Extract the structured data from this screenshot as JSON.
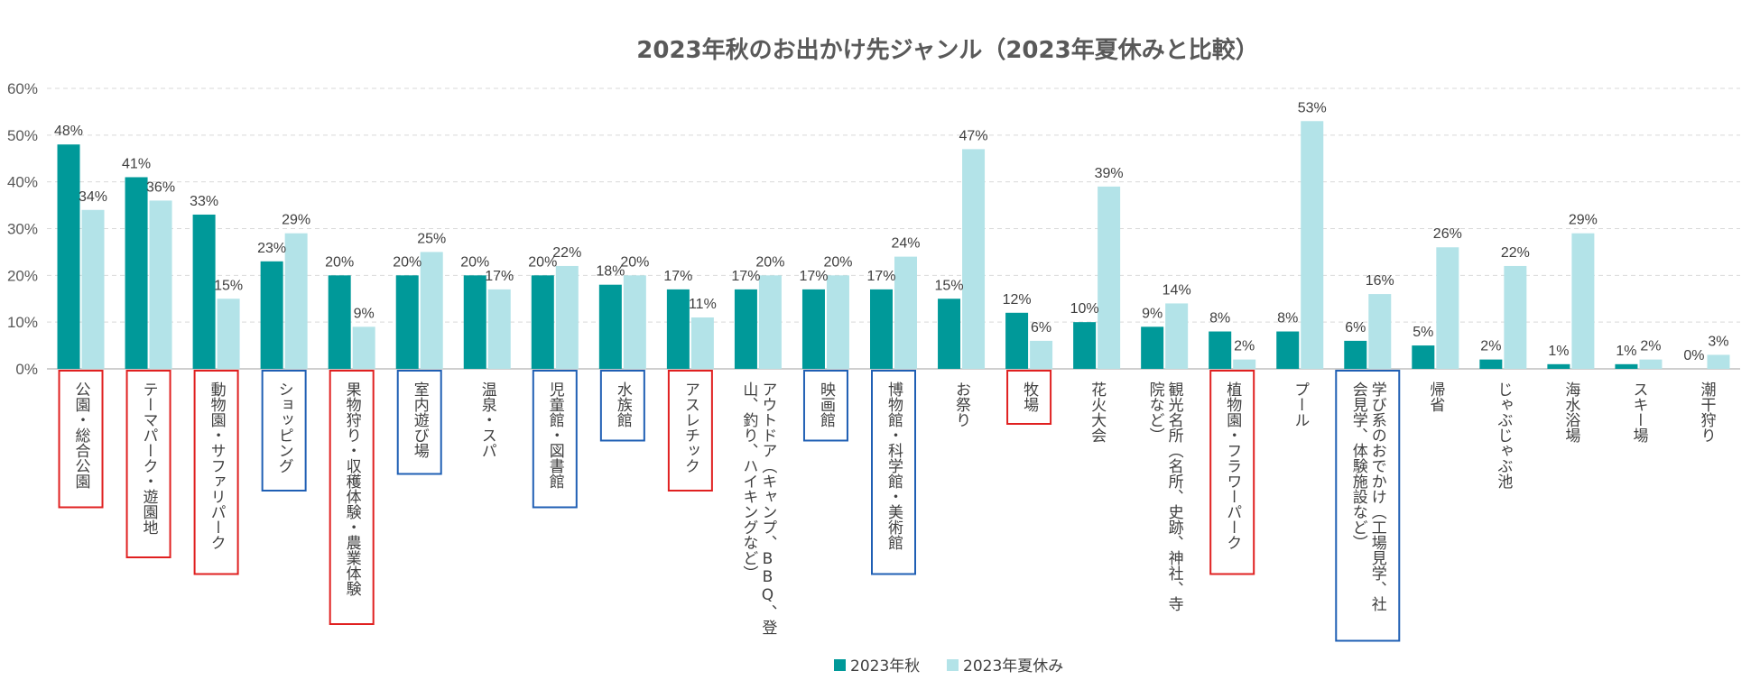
{
  "chart_data": {
    "type": "bar",
    "title": "2023年秋のお出かけ先ジャンル（2023年夏休みと比較）",
    "xlabel": "",
    "ylabel": "",
    "ylim": [
      0,
      60
    ],
    "yticks": [
      "0%",
      "10%",
      "20%",
      "30%",
      "40%",
      "50%",
      "60%"
    ],
    "grid": true,
    "legend_position": "bottom",
    "categories": [
      "公園・総合公園",
      "テーマパーク・遊園地",
      "動物園・サファリパーク",
      "ショッピング",
      "果物狩り・収穫体験・農業体験",
      "室内遊び場",
      "温泉・スパ",
      "児童館・図書館",
      "水族館",
      "アスレチック",
      "アウトドア（キャンプ、BBQ、登山、釣り、ハイキングなど）",
      "映画館",
      "博物館・科学館・美術館",
      "お祭り",
      "牧場",
      "花火大会",
      "観光名所（名所、史跡、神社、寺院など）",
      "植物園・フラワーパーク",
      "プール",
      "学び系のおでかけ（工場見学、社会見学、体験施設など）",
      "帰省",
      "じゃぶじゃぶ池",
      "海水浴場",
      "スキー場",
      "潮干狩り"
    ],
    "category_lines": [
      [
        "公園・総合公園"
      ],
      [
        "テーマパーク・遊園地"
      ],
      [
        "動物園・サファリパーク"
      ],
      [
        "ショッピング"
      ],
      [
        "果物狩り・収穫体験・農業体験"
      ],
      [
        "室内遊び場"
      ],
      [
        "温泉・スパ"
      ],
      [
        "児童館・図書館"
      ],
      [
        "水族館"
      ],
      [
        "アスレチック"
      ],
      [
        "アウトドア（キャンプ、BBQ、登",
        "山、釣り、ハイキングなど）"
      ],
      [
        "映画館"
      ],
      [
        "博物館・科学館・美術館"
      ],
      [
        "お祭り"
      ],
      [
        "牧場"
      ],
      [
        "花火大会"
      ],
      [
        "観光名所（名所、史跡、神社、寺",
        "院など）"
      ],
      [
        "植物園・フラワーパーク"
      ],
      [
        "プール"
      ],
      [
        "学び系のおでかけ（工場見学、社",
        "会見学、体験施設など）"
      ],
      [
        "帰省"
      ],
      [
        "じゃぶじゃぶ池"
      ],
      [
        "海水浴場"
      ],
      [
        "スキー場"
      ],
      [
        "潮干狩り"
      ]
    ],
    "series": [
      {
        "name": "2023年秋",
        "color": "#009999",
        "values": [
          48,
          41,
          33,
          23,
          20,
          20,
          20,
          20,
          18,
          17,
          17,
          17,
          17,
          15,
          12,
          10,
          9,
          8,
          8,
          6,
          5,
          2,
          1,
          1,
          0
        ],
        "labels": [
          "48%",
          "41%",
          "33%",
          "23%",
          "20%",
          "20%",
          "20%",
          "20%",
          "18%",
          "17%",
          "17%",
          "17%",
          "17%",
          "15%",
          "12%",
          "10%",
          "9%",
          "8%",
          "8%",
          "6%",
          "5%",
          "2%",
          "1%",
          "1%",
          "0%"
        ]
      },
      {
        "name": "2023年夏休み",
        "color": "#b3e3e8",
        "values": [
          34,
          36,
          15,
          29,
          9,
          25,
          17,
          22,
          20,
          11,
          20,
          20,
          24,
          47,
          6,
          39,
          14,
          2,
          53,
          16,
          26,
          22,
          29,
          2,
          3
        ],
        "labels": [
          "34%",
          "36%",
          "15%",
          "29%",
          "9%",
          "25%",
          "17%",
          "22%",
          "20%",
          "11%",
          "20%",
          "20%",
          "24%",
          "47%",
          "6%",
          "39%",
          "14%",
          "2%",
          "53%",
          "16%",
          "26%",
          "22%",
          "29%",
          "2%",
          "3%"
        ]
      }
    ],
    "highlight_boxes": [
      {
        "category": "公園・総合公園",
        "color": "#e02020"
      },
      {
        "category": "テーマパーク・遊園地",
        "color": "#e02020"
      },
      {
        "category": "動物園・サファリパーク",
        "color": "#e02020"
      },
      {
        "category": "ショッピング",
        "color": "#1f5fb4"
      },
      {
        "category": "果物狩り・収穫体験・農業体験",
        "color": "#e02020"
      },
      {
        "category": "室内遊び場",
        "color": "#1f5fb4"
      },
      {
        "category": "児童館・図書館",
        "color": "#1f5fb4"
      },
      {
        "category": "水族館",
        "color": "#1f5fb4"
      },
      {
        "category": "アスレチック",
        "color": "#e02020"
      },
      {
        "category": "映画館",
        "color": "#1f5fb4"
      },
      {
        "category": "博物館・科学館・美術館",
        "color": "#1f5fb4"
      },
      {
        "category": "牧場",
        "color": "#e02020"
      },
      {
        "category": "植物園・フラワーパーク",
        "color": "#e02020"
      },
      {
        "category": "学び系のおでかけ（工場見学、社会見学、体験施設など）",
        "color": "#1f5fb4"
      }
    ],
    "colors": {
      "grid": "#d9d9d9",
      "axis": "#bfbfbf",
      "text": "#595959"
    }
  }
}
